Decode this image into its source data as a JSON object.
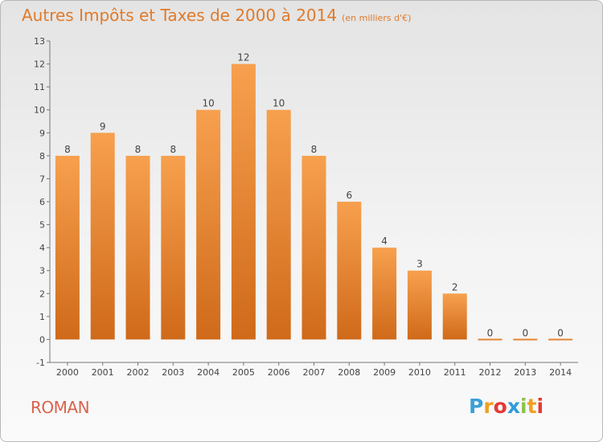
{
  "header": {
    "title": "Autres Impôts et Taxes de 2000 à 2014",
    "unit": "(en milliers d'€)"
  },
  "footer": {
    "commune": "ROMAN",
    "logo_text": "Proxiti",
    "logo_letters": [
      "P",
      "r",
      "o",
      "x",
      "i",
      "t",
      "i"
    ],
    "logo_colors": [
      "#3aa0d8",
      "#f0a020",
      "#e53935",
      "#2f9bdc",
      "#8bc34a",
      "#f0a020",
      "#e53935"
    ]
  },
  "chart_data": {
    "type": "bar",
    "categories": [
      "2000",
      "2001",
      "2002",
      "2003",
      "2004",
      "2005",
      "2006",
      "2007",
      "2008",
      "2009",
      "2010",
      "2011",
      "2012",
      "2013",
      "2014"
    ],
    "values": [
      8,
      9,
      8,
      8,
      10,
      12,
      10,
      8,
      6,
      4,
      3,
      2,
      0,
      0,
      0
    ],
    "data_labels": [
      "8",
      "9",
      "8",
      "8",
      "10",
      "12",
      "10",
      "8",
      "6",
      "4",
      "3",
      "2",
      "0",
      "0",
      "0"
    ],
    "yticks": [
      -1,
      0,
      1,
      2,
      3,
      4,
      5,
      6,
      7,
      8,
      9,
      10,
      11,
      12,
      13
    ],
    "ylim": [
      -1,
      13
    ],
    "bar_color_top": "#f7a04e",
    "bar_color_bottom": "#cf6a1a",
    "grid": false
  }
}
